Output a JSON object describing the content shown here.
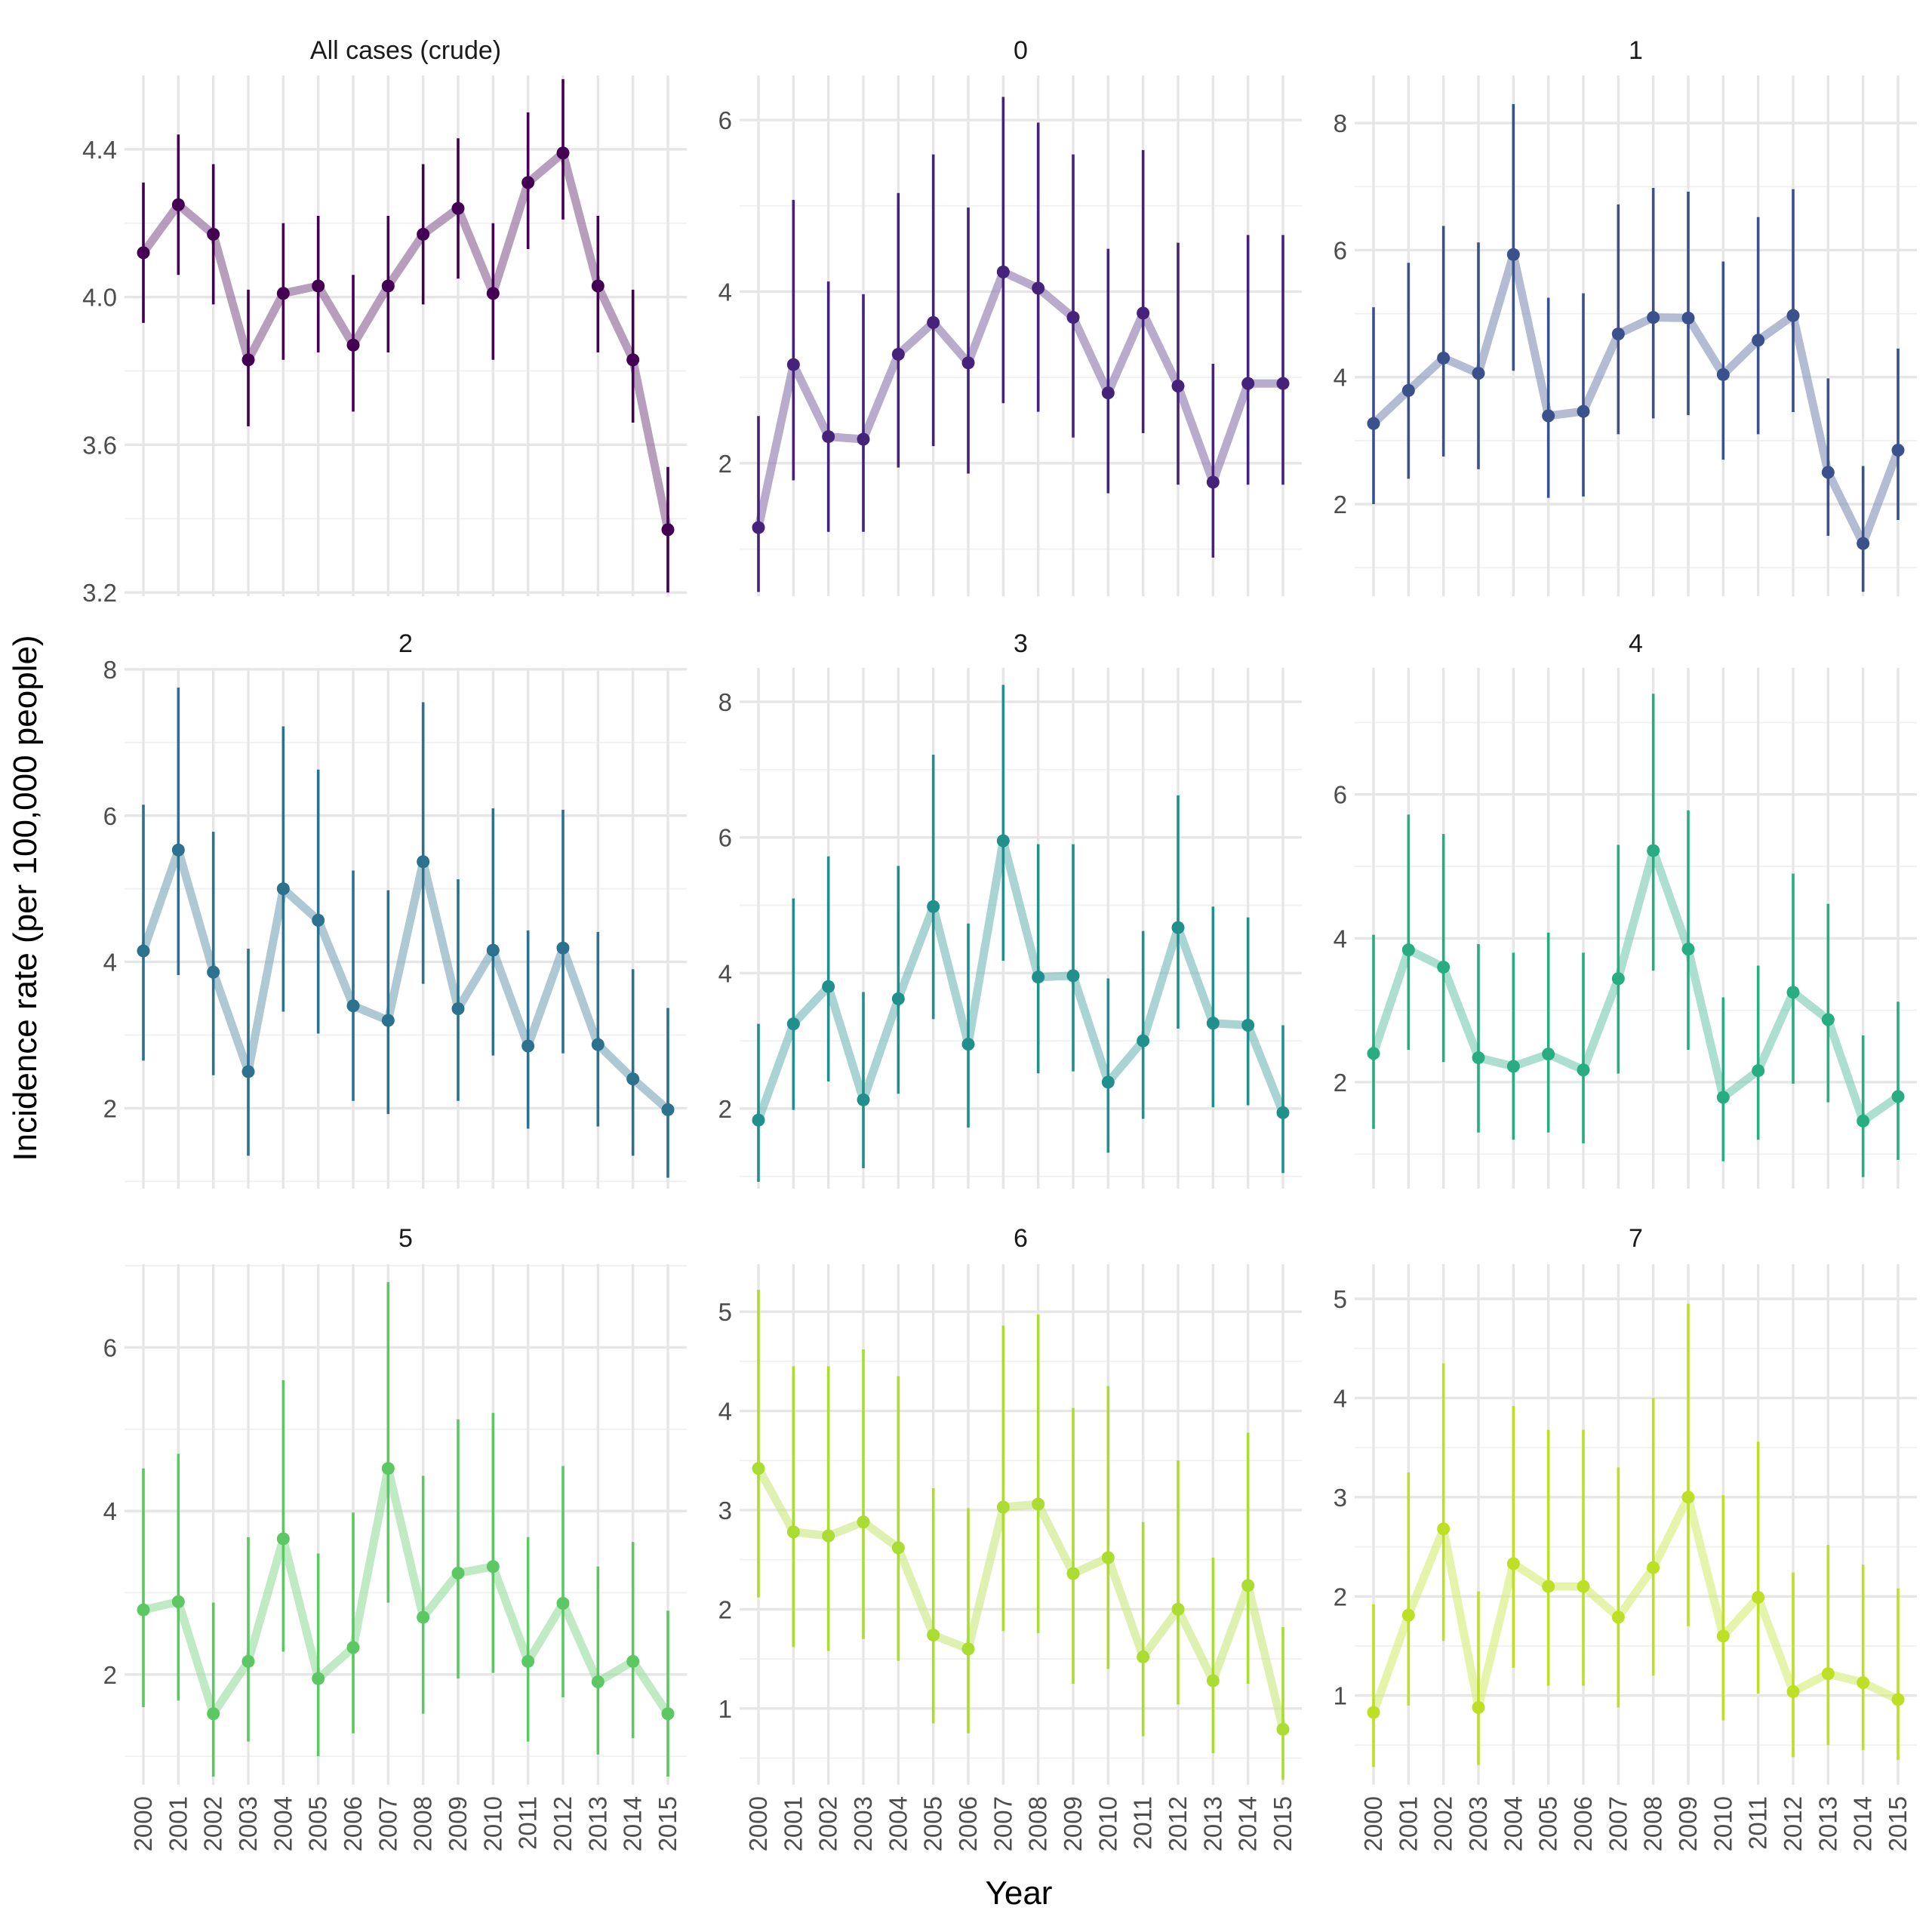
{
  "chart_data": {
    "type": "line",
    "xlabel": "Year",
    "ylabel": "Incidence rate (per 100,000 people)",
    "x": [
      "2000",
      "2001",
      "2002",
      "2003",
      "2004",
      "2005",
      "2006",
      "2007",
      "2008",
      "2009",
      "2010",
      "2011",
      "2012",
      "2013",
      "2014",
      "2015"
    ],
    "panels": [
      {
        "title": "All cases (crude)",
        "color": "#440154",
        "ylim": [
          3.19,
          4.6
        ],
        "yticks": [
          3.2,
          3.6,
          4.0,
          4.4
        ],
        "ytick_labels": [
          "3.2",
          "3.6",
          "4.0",
          "4.4"
        ],
        "values": [
          4.12,
          4.25,
          4.17,
          3.83,
          4.01,
          4.03,
          3.87,
          4.03,
          4.17,
          4.24,
          4.01,
          4.31,
          4.39,
          4.03,
          3.83,
          3.37
        ],
        "lower": [
          3.93,
          4.06,
          3.98,
          3.65,
          3.83,
          3.85,
          3.69,
          3.85,
          3.98,
          4.05,
          3.83,
          4.13,
          4.21,
          3.85,
          3.66,
          3.2
        ],
        "upper": [
          4.31,
          4.44,
          4.36,
          4.02,
          4.2,
          4.22,
          4.06,
          4.22,
          4.36,
          4.43,
          4.2,
          4.5,
          4.59,
          4.22,
          4.02,
          3.54
        ]
      },
      {
        "title": "0",
        "color": "#46237a",
        "ylim": [
          0.45,
          6.52
        ],
        "yticks": [
          2,
          4,
          6
        ],
        "ytick_labels": [
          "2",
          "4",
          "6"
        ],
        "values": [
          1.25,
          3.15,
          2.31,
          2.28,
          3.27,
          3.64,
          3.17,
          4.23,
          4.04,
          3.7,
          2.82,
          3.75,
          2.9,
          1.78,
          2.93,
          2.93
        ],
        "lower": [
          0.5,
          1.8,
          1.2,
          1.2,
          1.95,
          2.2,
          1.88,
          2.7,
          2.6,
          2.3,
          1.65,
          2.35,
          1.75,
          0.9,
          1.75,
          1.75
        ],
        "upper": [
          2.55,
          5.07,
          4.12,
          3.97,
          5.15,
          5.6,
          4.98,
          6.27,
          5.97,
          5.6,
          4.5,
          5.65,
          4.57,
          3.16,
          4.66,
          4.66
        ]
      },
      {
        "title": "1",
        "color": "#3b518b",
        "ylim": [
          0.55,
          8.75
        ],
        "yticks": [
          2,
          4,
          6,
          8
        ],
        "ytick_labels": [
          "2",
          "4",
          "6",
          "8"
        ],
        "values": [
          3.27,
          3.79,
          4.3,
          4.06,
          5.93,
          3.39,
          3.46,
          4.68,
          4.94,
          4.93,
          4.04,
          4.58,
          4.97,
          2.5,
          1.38,
          2.85
        ],
        "lower": [
          2.0,
          2.4,
          2.75,
          2.55,
          4.1,
          2.1,
          2.12,
          3.1,
          3.35,
          3.4,
          2.7,
          3.1,
          3.45,
          1.5,
          0.62,
          1.75
        ],
        "upper": [
          5.1,
          5.8,
          6.38,
          6.12,
          8.3,
          5.25,
          5.32,
          6.72,
          6.98,
          6.92,
          5.82,
          6.52,
          6.96,
          3.98,
          2.6,
          4.45
        ]
      },
      {
        "title": "2",
        "color": "#2c718e",
        "ylim": [
          0.9,
          8.02
        ],
        "yticks": [
          2,
          4,
          6,
          8
        ],
        "ytick_labels": [
          "2",
          "4",
          "6",
          "8"
        ],
        "values": [
          4.15,
          5.53,
          3.86,
          2.5,
          5.0,
          4.57,
          3.4,
          3.2,
          5.37,
          3.36,
          4.16,
          2.85,
          4.19,
          2.87,
          2.4,
          1.98
        ],
        "lower": [
          2.65,
          3.82,
          2.45,
          1.35,
          3.32,
          3.02,
          2.1,
          1.92,
          3.7,
          2.1,
          2.72,
          1.72,
          2.75,
          1.75,
          1.35,
          1.05
        ],
        "upper": [
          6.15,
          7.75,
          5.78,
          4.18,
          7.22,
          6.63,
          5.25,
          4.98,
          7.55,
          5.13,
          6.1,
          4.43,
          6.08,
          4.41,
          3.9,
          3.37
        ]
      },
      {
        "title": "3",
        "color": "#21908d",
        "ylim": [
          0.82,
          8.5
        ],
        "yticks": [
          2,
          4,
          6,
          8
        ],
        "ytick_labels": [
          "2",
          "4",
          "6",
          "8"
        ],
        "values": [
          1.83,
          3.25,
          3.8,
          2.13,
          3.62,
          4.98,
          2.95,
          5.95,
          3.94,
          3.96,
          2.39,
          3.0,
          4.67,
          3.26,
          3.23,
          1.94
        ],
        "lower": [
          0.92,
          1.98,
          2.4,
          1.12,
          2.22,
          3.32,
          1.72,
          4.18,
          2.52,
          2.55,
          1.35,
          1.85,
          3.18,
          2.02,
          2.05,
          1.05
        ],
        "upper": [
          3.25,
          5.1,
          5.72,
          3.72,
          5.58,
          7.22,
          4.73,
          8.25,
          5.9,
          5.9,
          3.92,
          4.62,
          6.62,
          4.98,
          4.82,
          3.23
        ]
      },
      {
        "title": "4",
        "color": "#27ad81",
        "ylim": [
          0.52,
          7.76
        ],
        "yticks": [
          2,
          4,
          6
        ],
        "ytick_labels": [
          "2",
          "4",
          "6"
        ],
        "values": [
          2.4,
          3.84,
          3.6,
          2.34,
          2.22,
          2.39,
          2.17,
          3.44,
          5.22,
          3.85,
          1.79,
          2.16,
          3.25,
          2.87,
          1.46,
          1.8
        ],
        "lower": [
          1.35,
          2.45,
          2.28,
          1.3,
          1.2,
          1.3,
          1.15,
          2.12,
          3.55,
          2.45,
          0.9,
          1.2,
          1.98,
          1.72,
          0.68,
          0.92
        ],
        "upper": [
          4.05,
          5.72,
          5.45,
          3.92,
          3.8,
          4.08,
          3.8,
          5.3,
          7.4,
          5.78,
          3.18,
          3.62,
          4.9,
          4.48,
          2.65,
          3.12
        ]
      },
      {
        "title": "5",
        "color": "#5cc863",
        "ylim": [
          0.65,
          7.02
        ],
        "yticks": [
          2,
          4,
          6
        ],
        "ytick_labels": [
          "2",
          "4",
          "6"
        ],
        "values": [
          2.79,
          2.89,
          1.52,
          2.16,
          3.66,
          1.95,
          2.33,
          4.52,
          2.7,
          3.24,
          3.32,
          2.16,
          2.87,
          1.91,
          2.16,
          1.52
        ],
        "lower": [
          1.6,
          1.68,
          0.75,
          1.18,
          2.28,
          1.0,
          1.28,
          2.88,
          1.52,
          1.95,
          2.02,
          1.18,
          1.72,
          1.02,
          1.22,
          0.75
        ],
        "upper": [
          4.52,
          4.7,
          2.88,
          3.68,
          5.6,
          3.48,
          3.98,
          6.8,
          4.43,
          5.12,
          5.2,
          3.68,
          4.55,
          3.32,
          3.62,
          2.78
        ]
      },
      {
        "title": "6",
        "color": "#aadc32",
        "ylim": [
          0.23,
          5.48
        ],
        "yticks": [
          1,
          2,
          3,
          4,
          5
        ],
        "ytick_labels": [
          "1",
          "2",
          "3",
          "4",
          "5"
        ],
        "values": [
          3.42,
          2.78,
          2.74,
          2.88,
          2.62,
          1.74,
          1.6,
          3.03,
          3.06,
          2.36,
          2.52,
          1.52,
          2.0,
          1.28,
          2.24,
          0.79
        ],
        "lower": [
          2.12,
          1.62,
          1.58,
          1.7,
          1.48,
          0.85,
          0.75,
          1.78,
          1.76,
          1.25,
          1.4,
          0.72,
          1.04,
          0.55,
          1.25,
          0.28
        ],
        "upper": [
          5.22,
          4.45,
          4.45,
          4.62,
          4.35,
          3.22,
          3.02,
          4.86,
          4.97,
          4.03,
          4.25,
          2.88,
          3.5,
          2.52,
          3.78,
          1.82
        ]
      },
      {
        "title": "7",
        "color": "#bddf26",
        "ylim": [
          0.1,
          5.35
        ],
        "yticks": [
          1,
          2,
          3,
          4,
          5
        ],
        "ytick_labels": [
          "1",
          "2",
          "3",
          "4",
          "5"
        ],
        "values": [
          0.83,
          1.81,
          2.68,
          0.88,
          2.33,
          2.1,
          2.1,
          1.79,
          2.29,
          3.0,
          1.6,
          1.99,
          1.04,
          1.22,
          1.13,
          0.96
        ],
        "lower": [
          0.28,
          0.9,
          1.55,
          0.3,
          1.28,
          1.1,
          1.1,
          0.88,
          1.2,
          1.7,
          0.75,
          1.02,
          0.38,
          0.5,
          0.45,
          0.35
        ],
        "upper": [
          1.92,
          3.25,
          4.35,
          2.05,
          3.92,
          3.68,
          3.68,
          3.3,
          4.0,
          4.95,
          3.02,
          3.56,
          2.24,
          2.52,
          2.32,
          2.08
        ]
      }
    ]
  }
}
